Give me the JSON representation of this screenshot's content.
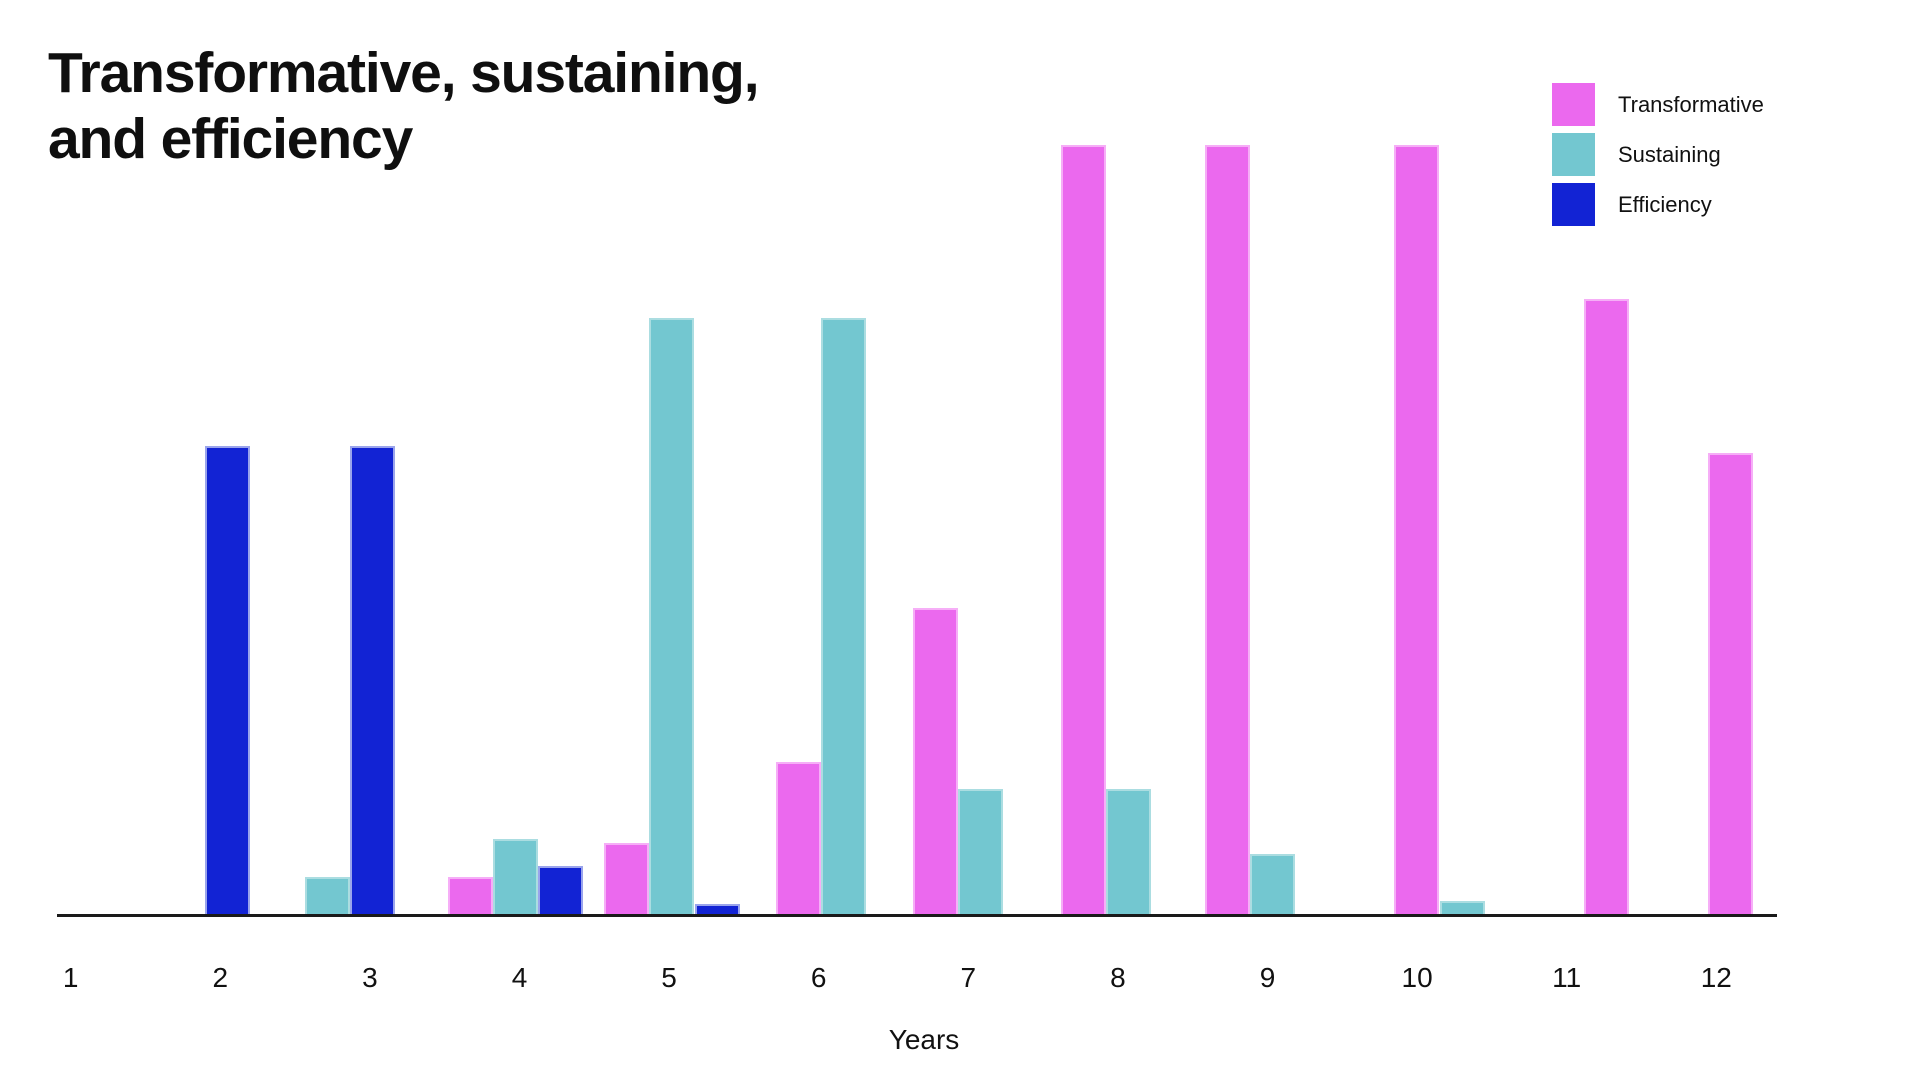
{
  "page": {
    "background": "#ffffff"
  },
  "chart_data": {
    "type": "bar",
    "title": "Transformative, sustaining, and efficiency",
    "title_lines": [
      "Transformative, sustaining,",
      "and efficiency"
    ],
    "xlabel": "Years",
    "categories": [
      "1",
      "2",
      "3",
      "4",
      "5",
      "6",
      "7",
      "8",
      "9",
      "10",
      "11",
      "12"
    ],
    "ylim": [
      0,
      100
    ],
    "grid": false,
    "y_axis_visible": false,
    "legend_position": "top-right",
    "axis_color": "#1a1a1a",
    "text_color": "#111111",
    "series": [
      {
        "name": "Transformative",
        "color": "#eb69ee",
        "border_color": "#f6aef7",
        "values": [
          0,
          0,
          0,
          5,
          9.5,
          20,
          40,
          100,
          100,
          100,
          80,
          60
        ]
      },
      {
        "name": "Sustaining",
        "color": "#73c7d0",
        "border_color": "#abdde1",
        "values": [
          0,
          0,
          5,
          10,
          77.5,
          77.5,
          16.5,
          16.5,
          8,
          2,
          0,
          0
        ]
      },
      {
        "name": "Efficiency",
        "color": "#1223d4",
        "border_color": "#9aa4ec",
        "values": [
          0,
          61,
          61,
          6.5,
          1.5,
          0,
          0,
          0,
          0,
          0,
          0,
          0
        ]
      }
    ]
  }
}
